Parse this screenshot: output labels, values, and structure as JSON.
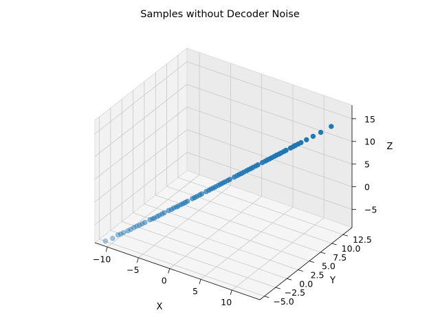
{
  "chart_data": {
    "type": "scatter",
    "title": "Samples without Decoder Noise",
    "xlabel": "X",
    "ylabel": "Y",
    "zlabel": "Z",
    "xlim": [
      -12,
      14.5
    ],
    "ylim": [
      -6,
      14.5
    ],
    "zlim": [
      -9,
      18
    ],
    "x_ticks": [
      -10,
      -5,
      0,
      5,
      10
    ],
    "y_ticks": [
      -5.0,
      -2.5,
      0.0,
      2.5,
      5.0,
      7.5,
      10.0,
      12.5
    ],
    "z_ticks": [
      -5,
      0,
      5,
      10,
      15
    ],
    "x_tick_labels": [
      "−10",
      "−5",
      "0",
      "5",
      "10"
    ],
    "y_tick_labels": [
      "−5.0",
      "−2.5",
      "0.0",
      "2.5",
      "5.0",
      "7.5",
      "10.0",
      "12.5"
    ],
    "z_tick_labels": [
      "−5",
      "0",
      "5",
      "10",
      "15"
    ],
    "grid": true,
    "projection": "3d",
    "marker_color": "#1f77b4",
    "points": [
      [
        -10.6,
        -5.6,
        -8.3
      ],
      [
        -9.8,
        -5.1,
        -7.7
      ],
      [
        -9.3,
        -4.6,
        -7.1
      ],
      [
        -8.7,
        -4.2,
        -6.6
      ],
      [
        -8.2,
        -3.9,
        -6.2
      ],
      [
        -7.6,
        -3.4,
        -5.6
      ],
      [
        -7.0,
        -3.0,
        -5.1
      ],
      [
        -6.4,
        -2.6,
        -4.5
      ],
      [
        -5.9,
        -2.2,
        -4.0
      ],
      [
        -5.4,
        -1.9,
        -3.6
      ],
      [
        -4.9,
        -1.5,
        -3.1
      ],
      [
        -4.4,
        -1.1,
        -2.6
      ],
      [
        -3.9,
        -0.8,
        -2.1
      ],
      [
        -3.4,
        -0.4,
        -1.6
      ],
      [
        -2.9,
        -0.1,
        -1.2
      ],
      [
        -2.4,
        0.3,
        -0.7
      ],
      [
        -1.9,
        0.6,
        -0.2
      ],
      [
        -1.4,
        1.0,
        0.3
      ],
      [
        -0.9,
        1.3,
        0.8
      ],
      [
        -0.4,
        1.7,
        1.3
      ],
      [
        0.1,
        2.0,
        1.8
      ],
      [
        0.6,
        2.4,
        2.3
      ],
      [
        1.1,
        2.7,
        2.8
      ],
      [
        1.6,
        3.1,
        3.3
      ],
      [
        2.1,
        3.4,
        3.8
      ],
      [
        2.6,
        3.8,
        4.3
      ],
      [
        3.1,
        4.1,
        4.8
      ],
      [
        3.6,
        4.5,
        5.3
      ],
      [
        4.1,
        4.8,
        5.8
      ],
      [
        4.6,
        5.2,
        6.3
      ],
      [
        5.1,
        5.5,
        6.8
      ],
      [
        5.6,
        5.9,
        7.3
      ],
      [
        6.1,
        6.2,
        7.8
      ],
      [
        6.6,
        6.6,
        8.3
      ],
      [
        7.1,
        6.9,
        8.8
      ],
      [
        7.6,
        7.3,
        9.3
      ],
      [
        8.1,
        7.6,
        9.8
      ],
      [
        8.6,
        8.0,
        10.3
      ],
      [
        9.1,
        8.3,
        10.8
      ],
      [
        9.6,
        8.7,
        11.3
      ],
      [
        10.2,
        9.1,
        11.9
      ],
      [
        10.8,
        9.5,
        12.5
      ],
      [
        11.5,
        10.0,
        13.2
      ],
      [
        12.3,
        10.6,
        14.0
      ],
      [
        13.4,
        11.4,
        15.2
      ],
      [
        -7.9,
        -3.7,
        -5.9
      ],
      [
        -6.7,
        -2.8,
        -4.8
      ],
      [
        -5.1,
        -1.7,
        -3.3
      ],
      [
        -3.6,
        -0.6,
        -1.9
      ],
      [
        -2.1,
        0.4,
        -0.4
      ],
      [
        -0.6,
        1.5,
        1.1
      ],
      [
        0.9,
        2.5,
        2.6
      ],
      [
        2.4,
        3.6,
        4.1
      ],
      [
        3.9,
        4.6,
        5.6
      ],
      [
        5.4,
        5.7,
        7.1
      ],
      [
        6.9,
        6.7,
        8.6
      ],
      [
        8.4,
        7.8,
        10.1
      ],
      [
        9.9,
        8.9,
        11.6
      ],
      [
        -4.6,
        -1.3,
        -2.8
      ],
      [
        -1.1,
        1.1,
        0.6
      ],
      [
        1.4,
        2.9,
        3.1
      ],
      [
        4.4,
        5.0,
        6.1
      ],
      [
        7.4,
        7.1,
        9.1
      ],
      [
        -7.3,
        -3.2,
        -5.3
      ],
      [
        -2.6,
        0.1,
        -0.9
      ],
      [
        0.4,
        2.2,
        2.1
      ],
      [
        3.4,
        4.3,
        5.1
      ],
      [
        6.4,
        6.4,
        8.1
      ],
      [
        9.4,
        8.5,
        11.1
      ],
      [
        -5.6,
        -2.0,
        -3.8
      ],
      [
        -3.1,
        -0.2,
        -1.4
      ],
      [
        1.9,
        3.2,
        3.6
      ],
      [
        4.9,
        5.3,
        6.6
      ],
      [
        7.9,
        7.4,
        9.6
      ],
      [
        -9.0,
        -4.4,
        -6.9
      ]
    ]
  }
}
